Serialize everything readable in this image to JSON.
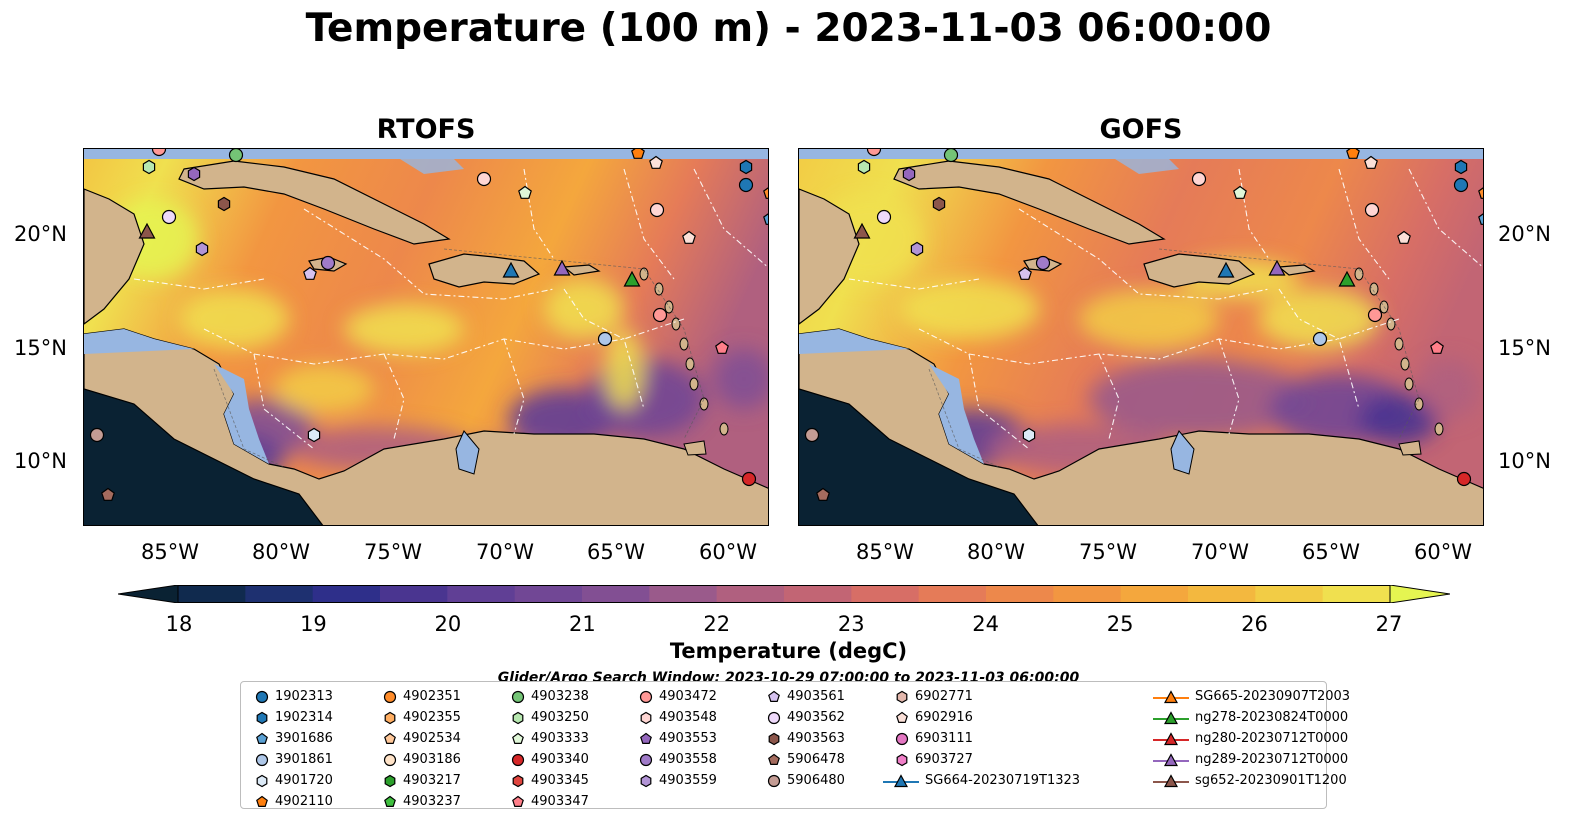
{
  "title": "Temperature (100 m) - 2023-11-03 06:00:00",
  "panels": [
    {
      "title": "RTOFS"
    },
    {
      "title": "GOFS"
    }
  ],
  "lat_labels": [
    "20°N",
    "15°N",
    "10°N"
  ],
  "lon_labels": [
    "85°W",
    "80°W",
    "75°W",
    "70°W",
    "65°W",
    "60°W"
  ],
  "colorbar": {
    "ticks": [
      "18",
      "19",
      "20",
      "21",
      "22",
      "23",
      "24",
      "25",
      "26",
      "27"
    ],
    "label": "Temperature (degC)",
    "colors": [
      "#0a2233",
      "#102a4e",
      "#1e3070",
      "#2e2f8a",
      "#4a3590",
      "#603f95",
      "#714795",
      "#824f93",
      "#9a5a8b",
      "#b0607f",
      "#c26574",
      "#d76e66",
      "#e57b58",
      "#ed884b",
      "#f29641",
      "#f4a73d",
      "#f3b83f",
      "#f2cc45",
      "#f0e04f",
      "#e5f551"
    ]
  },
  "search_window": "Glider/Argo Search Window: 2023-10-29 07:00:00 to 2023-11-03 06:00:00",
  "legend": [
    {
      "label": "1902313",
      "shape": "circle",
      "color": "#1f77b4"
    },
    {
      "label": "1902314",
      "shape": "hexagon",
      "color": "#1f77b4"
    },
    {
      "label": "3901686",
      "shape": "pentagon",
      "color": "#5aa0d3"
    },
    {
      "label": "3901861",
      "shape": "circle",
      "color": "#aec7e8"
    },
    {
      "label": "4901720",
      "shape": "hexagon",
      "color": "#dceaf7"
    },
    {
      "label": "4902110",
      "shape": "pentagon",
      "color": "#ff7f0e"
    },
    {
      "label": "4902351",
      "shape": "circle",
      "color": "#ff8c2a"
    },
    {
      "label": "4902355",
      "shape": "hexagon",
      "color": "#ffae62"
    },
    {
      "label": "4902534",
      "shape": "pentagon",
      "color": "#ffc89a"
    },
    {
      "label": "4903186",
      "shape": "circle",
      "color": "#ffe3c8"
    },
    {
      "label": "4903217",
      "shape": "hexagon",
      "color": "#2ca02c"
    },
    {
      "label": "4903237",
      "shape": "pentagon",
      "color": "#3fbf3f"
    },
    {
      "label": "4903238",
      "shape": "circle",
      "color": "#74c476"
    },
    {
      "label": "4903250",
      "shape": "hexagon",
      "color": "#b7e8b0"
    },
    {
      "label": "4903333",
      "shape": "pentagon",
      "color": "#e0f7d8"
    },
    {
      "label": "4903340",
      "shape": "circle",
      "color": "#d62728"
    },
    {
      "label": "4903345",
      "shape": "hexagon",
      "color": "#e0453f"
    },
    {
      "label": "4903347",
      "shape": "pentagon",
      "color": "#ff7f8a"
    },
    {
      "label": "4903472",
      "shape": "circle",
      "color": "#ff9896"
    },
    {
      "label": "4903548",
      "shape": "hexagon",
      "color": "#ffd6d3"
    },
    {
      "label": "4903553",
      "shape": "pentagon",
      "color": "#9467bd"
    },
    {
      "label": "4903558",
      "shape": "circle",
      "color": "#a07bc9"
    },
    {
      "label": "4903559",
      "shape": "hexagon",
      "color": "#b294d6"
    },
    {
      "label": "4903561",
      "shape": "pentagon",
      "color": "#d6c2ef"
    },
    {
      "label": "4903562",
      "shape": "circle",
      "color": "#eed9fa"
    },
    {
      "label": "4903563",
      "shape": "hexagon",
      "color": "#8c564b"
    },
    {
      "label": "5906478",
      "shape": "pentagon",
      "color": "#a46b5e"
    },
    {
      "label": "5906480",
      "shape": "circle",
      "color": "#c49c94"
    },
    {
      "label": "6902771",
      "shape": "hexagon",
      "color": "#e3b8ad"
    },
    {
      "label": "6902916",
      "shape": "pentagon",
      "color": "#fbe0d8"
    },
    {
      "label": "6903111",
      "shape": "circle",
      "color": "#e377c2"
    },
    {
      "label": "6903727",
      "shape": "hexagon",
      "color": "#f07fc8"
    },
    {
      "label": "SG664-20230719T1323",
      "shape": "triangle-line",
      "color": "#1f77b4"
    },
    {
      "label": "SG665-20230907T2003",
      "shape": "triangle-line",
      "color": "#ff7f0e"
    },
    {
      "label": "ng278-20230824T0000",
      "shape": "triangle-line",
      "color": "#2ca02c"
    },
    {
      "label": "ng280-20230712T0000",
      "shape": "triangle-line",
      "color": "#d62728"
    },
    {
      "label": "ng289-20230712T0000",
      "shape": "triangle-line",
      "color": "#9467bd"
    },
    {
      "label": "sg652-20230901T1200",
      "shape": "triangle-line",
      "color": "#8c564b"
    }
  ],
  "colors": {
    "land": "#d2b48c",
    "shallow": "#97b6e1",
    "pacific": "#0a2233"
  }
}
